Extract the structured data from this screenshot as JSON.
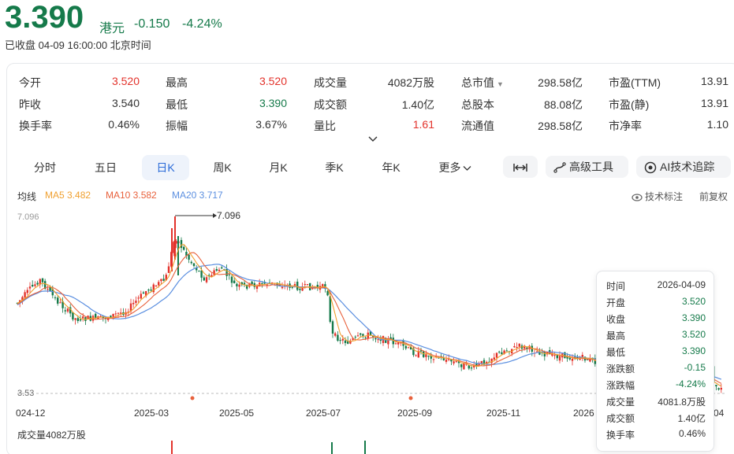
{
  "header": {
    "price": "3.390",
    "unit": "港元",
    "change": "-0.150",
    "change_pct": "-4.24%",
    "status_text": "已收盘 04-09 16:00:00 北京时间"
  },
  "quote": {
    "col1": [
      {
        "label": "今开",
        "value": "3.520",
        "color": "red"
      },
      {
        "label": "昨收",
        "value": "3.540",
        "color": "normal"
      },
      {
        "label": "换手率",
        "value": "0.46%",
        "color": "normal"
      }
    ],
    "col2": [
      {
        "label": "最高",
        "value": "3.520",
        "color": "red"
      },
      {
        "label": "最低",
        "value": "3.390",
        "color": "green"
      },
      {
        "label": "振幅",
        "value": "3.67%",
        "color": "normal"
      }
    ],
    "col3": [
      {
        "label": "成交量",
        "value": "4082万股",
        "color": "normal"
      },
      {
        "label": "成交额",
        "value": "1.40亿",
        "color": "normal"
      },
      {
        "label": "量比",
        "value": "1.61",
        "color": "red"
      }
    ],
    "col4": [
      {
        "label": "总市值",
        "value": "298.58亿",
        "color": "normal"
      },
      {
        "label": "总股本",
        "value": "88.08亿",
        "color": "normal"
      },
      {
        "label": "流通值",
        "value": "298.58亿",
        "color": "normal"
      }
    ],
    "col5": [
      {
        "label": "市盈(TTM)",
        "value": "13.91",
        "color": "normal"
      },
      {
        "label": "市盈(静)",
        "value": "13.91",
        "color": "normal"
      },
      {
        "label": "市净率",
        "value": "1.10",
        "color": "normal"
      }
    ]
  },
  "tabs": [
    {
      "label": "分时"
    },
    {
      "label": "五日"
    },
    {
      "label": "日K"
    },
    {
      "label": "周K"
    },
    {
      "label": "月K"
    },
    {
      "label": "季K"
    },
    {
      "label": "年K"
    },
    {
      "label": "更多"
    }
  ],
  "tools": {
    "expand_icon": "expand-horizontal-icon",
    "advanced_label": "高级工具",
    "ai_label": "AI技术追踪"
  },
  "ma": {
    "label": "均线",
    "ma5": "MA5 3.482",
    "ma10": "MA10 3.582",
    "ma20": "MA20 3.717",
    "ma5_color": "#f0a030",
    "ma10_color": "#e8613c",
    "ma20_color": "#5b8fe0"
  },
  "links": {
    "indicator": "技术标注",
    "adjust": "前复权"
  },
  "axis": {
    "max_label": "7.096",
    "min_label": "3.53",
    "peak_annotation": "7.096",
    "x_labels": [
      "024-12",
      "2025-03",
      "2025-05",
      "2025-07",
      "2025-09",
      "2025-11",
      "2026",
      "04"
    ]
  },
  "tooltip": {
    "rows": [
      {
        "k": "时间",
        "v": "2026-04-09",
        "color": "normal"
      },
      {
        "k": "开盘",
        "v": "3.520",
        "color": "green"
      },
      {
        "k": "收盘",
        "v": "3.390",
        "color": "green"
      },
      {
        "k": "最高",
        "v": "3.520",
        "color": "green"
      },
      {
        "k": "最低",
        "v": "3.390",
        "color": "green"
      },
      {
        "k": "涨跌额",
        "v": "-0.15",
        "color": "green"
      },
      {
        "k": "涨跌幅",
        "v": "-4.24%",
        "color": "green"
      },
      {
        "k": "成交量",
        "v": "4081.8万股",
        "color": "normal"
      },
      {
        "k": "成交额",
        "v": "1.40亿",
        "color": "normal"
      },
      {
        "k": "换手率",
        "v": "0.46%",
        "color": "normal"
      }
    ]
  },
  "volume": {
    "label": "成交量4082万股"
  },
  "colors": {
    "up": "#e3322b",
    "down": "#157a4a",
    "accent": "#2b6bd8"
  }
}
